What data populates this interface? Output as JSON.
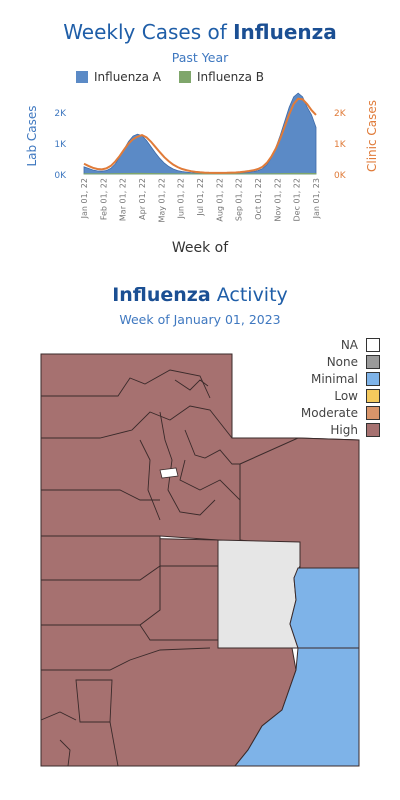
{
  "header": {
    "title_prefix": "Weekly Cases of ",
    "title_bold": "Influenza",
    "subtitle": "Past Year"
  },
  "legend": {
    "items": [
      {
        "label": "Influenza A",
        "color": "#5b8ac6"
      },
      {
        "label": "Influenza B",
        "color": "#7fa66b"
      }
    ]
  },
  "chart_data": {
    "type": "area",
    "x": [
      "Jan 01, 22",
      "Jan 08, 22",
      "Jan 15, 22",
      "Jan 22, 22",
      "Jan 29, 22",
      "Feb 05, 22",
      "Feb 12, 22",
      "Feb 19, 22",
      "Feb 26, 22",
      "Mar 05, 22",
      "Mar 12, 22",
      "Mar 19, 22",
      "Mar 26, 22",
      "Apr 02, 22",
      "Apr 09, 22",
      "Apr 16, 22",
      "Apr 23, 22",
      "Apr 30, 22",
      "May 07, 22",
      "May 14, 22",
      "May 21, 22",
      "May 28, 22",
      "Jun 04, 22",
      "Jun 11, 22",
      "Jun 18, 22",
      "Jun 25, 22",
      "Jul 02, 22",
      "Jul 09, 22",
      "Jul 16, 22",
      "Jul 23, 22",
      "Jul 30, 22",
      "Aug 06, 22",
      "Aug 13, 22",
      "Aug 20, 22",
      "Aug 27, 22",
      "Sep 03, 22",
      "Sep 10, 22",
      "Sep 17, 22",
      "Sep 24, 22",
      "Oct 01, 22",
      "Oct 08, 22",
      "Oct 15, 22",
      "Oct 22, 22",
      "Oct 29, 22",
      "Nov 05, 22",
      "Nov 12, 22",
      "Nov 19, 22",
      "Nov 26, 22",
      "Dec 03, 22",
      "Dec 10, 22",
      "Dec 17, 22",
      "Dec 24, 22",
      "Dec 31, 22"
    ],
    "x_tick_labels": [
      "Jan 01, 22",
      "Feb 01, 22",
      "Mar 01, 22",
      "Apr 01, 22",
      "May 01, 22",
      "Jun 01, 22",
      "Jul 01, 22",
      "Aug 01, 22",
      "Sep 01, 22",
      "Oct 01, 22",
      "Nov 01, 22",
      "Dec 01, 22",
      "Jan 01, 23"
    ],
    "xlabel": "Week of",
    "ylabel_left": "Lab Cases",
    "ylabel_right": "Clinic Cases",
    "y_ticks_left": [
      "0K",
      "1K",
      "2K"
    ],
    "y_ticks_right": [
      "0K",
      "1K",
      "2K"
    ],
    "ylim_left": [
      0,
      2700
    ],
    "ylim_right": [
      0,
      2700
    ],
    "series": [
      {
        "name": "Influenza A",
        "axis": "left",
        "kind": "area",
        "values": [
          230,
          180,
          130,
          100,
          90,
          110,
          180,
          320,
          550,
          800,
          1050,
          1220,
          1280,
          1230,
          1080,
          880,
          680,
          500,
          350,
          240,
          160,
          110,
          80,
          60,
          45,
          35,
          30,
          25,
          22,
          20,
          20,
          20,
          22,
          25,
          30,
          35,
          45,
          60,
          80,
          110,
          170,
          300,
          520,
          850,
          1250,
          1700,
          2150,
          2480,
          2600,
          2480,
          2150,
          1900,
          1500
        ]
      },
      {
        "name": "Influenza B",
        "axis": "left",
        "kind": "area",
        "values": [
          10,
          10,
          10,
          10,
          10,
          10,
          12,
          14,
          16,
          18,
          20,
          22,
          22,
          22,
          20,
          18,
          16,
          14,
          12,
          10,
          10,
          9,
          8,
          8,
          8,
          8,
          8,
          8,
          8,
          8,
          8,
          8,
          8,
          8,
          8,
          8,
          8,
          8,
          8,
          8,
          8,
          10,
          12,
          14,
          16,
          18,
          20,
          22,
          24,
          24,
          22,
          20,
          18
        ]
      },
      {
        "axis": "right",
        "kind": "line",
        "color": "#e07b39",
        "values": [
          330,
          260,
          200,
          160,
          150,
          180,
          260,
          400,
          580,
          790,
          980,
          1120,
          1200,
          1250,
          1180,
          1040,
          870,
          700,
          540,
          410,
          300,
          220,
          160,
          120,
          90,
          70,
          55,
          45,
          40,
          38,
          38,
          38,
          40,
          45,
          50,
          60,
          75,
          95,
          120,
          160,
          230,
          360,
          560,
          820,
          1150,
          1530,
          1920,
          2250,
          2420,
          2400,
          2250,
          2050,
          1900
        ]
      }
    ]
  },
  "map": {
    "title_bold": "Influenza",
    "title_rest": " Activity",
    "subtitle": "Week of January 01, 2023",
    "legend": [
      {
        "label": "NA",
        "color": "#ffffff"
      },
      {
        "label": "None",
        "color": "#9a9a9a"
      },
      {
        "label": "Minimal",
        "color": "#7eb3e8"
      },
      {
        "label": "Low",
        "color": "#f4c95d"
      },
      {
        "label": "Moderate",
        "color": "#d9956a"
      },
      {
        "label": "High",
        "color": "#a67170"
      }
    ],
    "colors": {
      "high": "#a67170",
      "na": "#e6e6e6",
      "minimal": "#7eb3e8",
      "border": "#3a2a2a"
    }
  }
}
